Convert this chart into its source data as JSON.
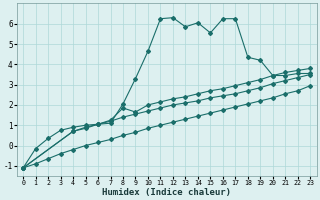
{
  "bg_color": "#ddf0f0",
  "grid_color": "#afd8d8",
  "line_color": "#1a6e6a",
  "xlabel": "Humidex (Indice chaleur)",
  "xlim": [
    -0.5,
    23.5
  ],
  "ylim": [
    -1.5,
    7.0
  ],
  "yticks": [
    -1,
    0,
    1,
    2,
    3,
    4,
    5,
    6
  ],
  "xticks": [
    0,
    1,
    2,
    3,
    4,
    5,
    6,
    7,
    8,
    9,
    10,
    11,
    12,
    13,
    14,
    15,
    16,
    17,
    18,
    19,
    20,
    21,
    22,
    23
  ],
  "line_main_x": [
    0,
    1,
    2,
    3,
    4,
    5,
    6,
    7,
    8,
    9,
    10,
    11,
    12,
    13,
    14,
    15,
    16,
    17,
    18,
    19,
    20,
    21,
    22,
    23
  ],
  "line_main_y": [
    -1.1,
    -0.15,
    0.35,
    0.75,
    0.9,
    1.0,
    1.05,
    1.1,
    2.05,
    3.3,
    4.65,
    6.25,
    6.3,
    5.85,
    6.05,
    5.55,
    6.25,
    6.25,
    4.35,
    4.2,
    3.45,
    3.45,
    3.55,
    3.55
  ],
  "line_a_x": [
    0,
    1,
    2,
    3,
    4,
    5,
    6,
    7,
    8,
    9,
    10,
    11,
    12,
    13,
    14,
    15,
    16,
    17,
    18,
    19,
    20,
    21,
    22,
    23
  ],
  "line_a_y": [
    -1.1,
    -0.9,
    -0.65,
    -0.4,
    -0.2,
    0.0,
    0.15,
    0.3,
    0.5,
    0.65,
    0.85,
    1.0,
    1.15,
    1.3,
    1.45,
    1.6,
    1.75,
    1.9,
    2.05,
    2.2,
    2.35,
    2.55,
    2.7,
    2.95
  ],
  "line_b_x": [
    0,
    4,
    5,
    6,
    7,
    8,
    9,
    10,
    11,
    12,
    13,
    14,
    15,
    16,
    17,
    18,
    19,
    20,
    21,
    22,
    23
  ],
  "line_b_y": [
    -1.1,
    0.7,
    0.9,
    1.05,
    1.2,
    1.4,
    1.55,
    1.7,
    1.85,
    2.0,
    2.1,
    2.2,
    2.35,
    2.45,
    2.55,
    2.7,
    2.85,
    3.05,
    3.2,
    3.35,
    3.5
  ],
  "line_c_x": [
    0,
    4,
    5,
    6,
    7,
    8,
    9,
    10,
    11,
    12,
    13,
    14,
    15,
    16,
    17,
    18,
    19,
    20,
    21,
    22,
    23
  ],
  "line_c_y": [
    -1.1,
    0.7,
    0.85,
    1.05,
    1.25,
    1.85,
    1.65,
    2.0,
    2.15,
    2.3,
    2.4,
    2.55,
    2.7,
    2.8,
    2.95,
    3.1,
    3.25,
    3.45,
    3.6,
    3.7,
    3.8
  ]
}
